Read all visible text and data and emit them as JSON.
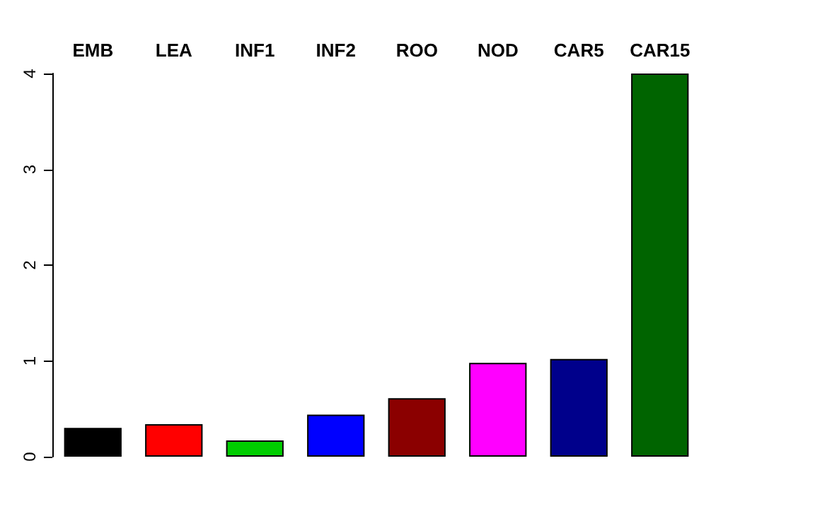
{
  "chart_data": {
    "type": "bar",
    "categories": [
      "EMB",
      "LEA",
      "INF1",
      "INF2",
      "ROO",
      "NOD",
      "CAR5",
      "CAR15"
    ],
    "values": [
      0.3,
      0.34,
      0.17,
      0.44,
      0.61,
      0.98,
      1.02,
      4
    ],
    "colors": [
      "#000000",
      "#ff0000",
      "#00cd00",
      "#0000ff",
      "#8b0000",
      "#ff00ff",
      "#00008b",
      "#006400"
    ],
    "ylim": [
      0,
      4
    ],
    "yticks": [
      0,
      1,
      2,
      3,
      4
    ]
  }
}
